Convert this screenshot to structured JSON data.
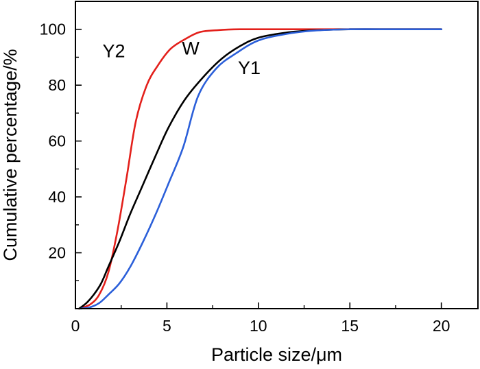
{
  "chart_data": {
    "type": "line",
    "xlabel": "Particle size/μm",
    "ylabel": "Cumulative percentage/%",
    "xlim": [
      0,
      22
    ],
    "ylim": [
      0,
      110
    ],
    "xticks": [
      "0",
      "5",
      "10",
      "15",
      "20"
    ],
    "yticks": [
      "20",
      "40",
      "60",
      "80",
      "100"
    ],
    "grid": false,
    "legend": "none",
    "series": [
      {
        "name": "Y2",
        "color": "#e3201b",
        "x": [
          0.2,
          0.8,
          1.3,
          1.8,
          2.3,
          2.8,
          3.3,
          3.9,
          4.5,
          5.2,
          6.0,
          6.8,
          7.8,
          9.0,
          11.0,
          14.0,
          17.0,
          20.0
        ],
        "y": [
          0,
          1.5,
          5,
          13,
          28,
          47,
          67,
          80,
          87,
          93,
          96.5,
          99,
          99.7,
          100,
          100,
          100,
          100,
          100
        ]
      },
      {
        "name": "W",
        "color": "#000000",
        "x": [
          0.2,
          0.6,
          1.0,
          1.4,
          1.8,
          2.4,
          3.0,
          3.6,
          4.4,
          5.1,
          6.0,
          7.0,
          8.0,
          9.0,
          10.0,
          11.5,
          13.0,
          15.0,
          17.5,
          20.0
        ],
        "y": [
          0,
          2,
          5,
          9,
          15,
          24,
          34,
          43,
          55,
          65,
          75,
          83,
          89.5,
          94,
          97,
          98.8,
          99.6,
          100,
          100,
          100
        ]
      },
      {
        "name": "Y1",
        "color": "#2b5fd9",
        "x": [
          0.3,
          0.8,
          1.3,
          1.8,
          2.4,
          3.0,
          3.7,
          4.4,
          5.1,
          5.9,
          6.7,
          7.7,
          8.8,
          10.0,
          11.5,
          13.0,
          15.0,
          17.5,
          20.0
        ],
        "y": [
          0,
          0.5,
          2,
          5,
          9,
          15,
          24,
          34,
          45,
          58,
          76,
          86,
          91.5,
          96,
          98.3,
          99.5,
          100,
          100,
          100
        ]
      }
    ]
  }
}
